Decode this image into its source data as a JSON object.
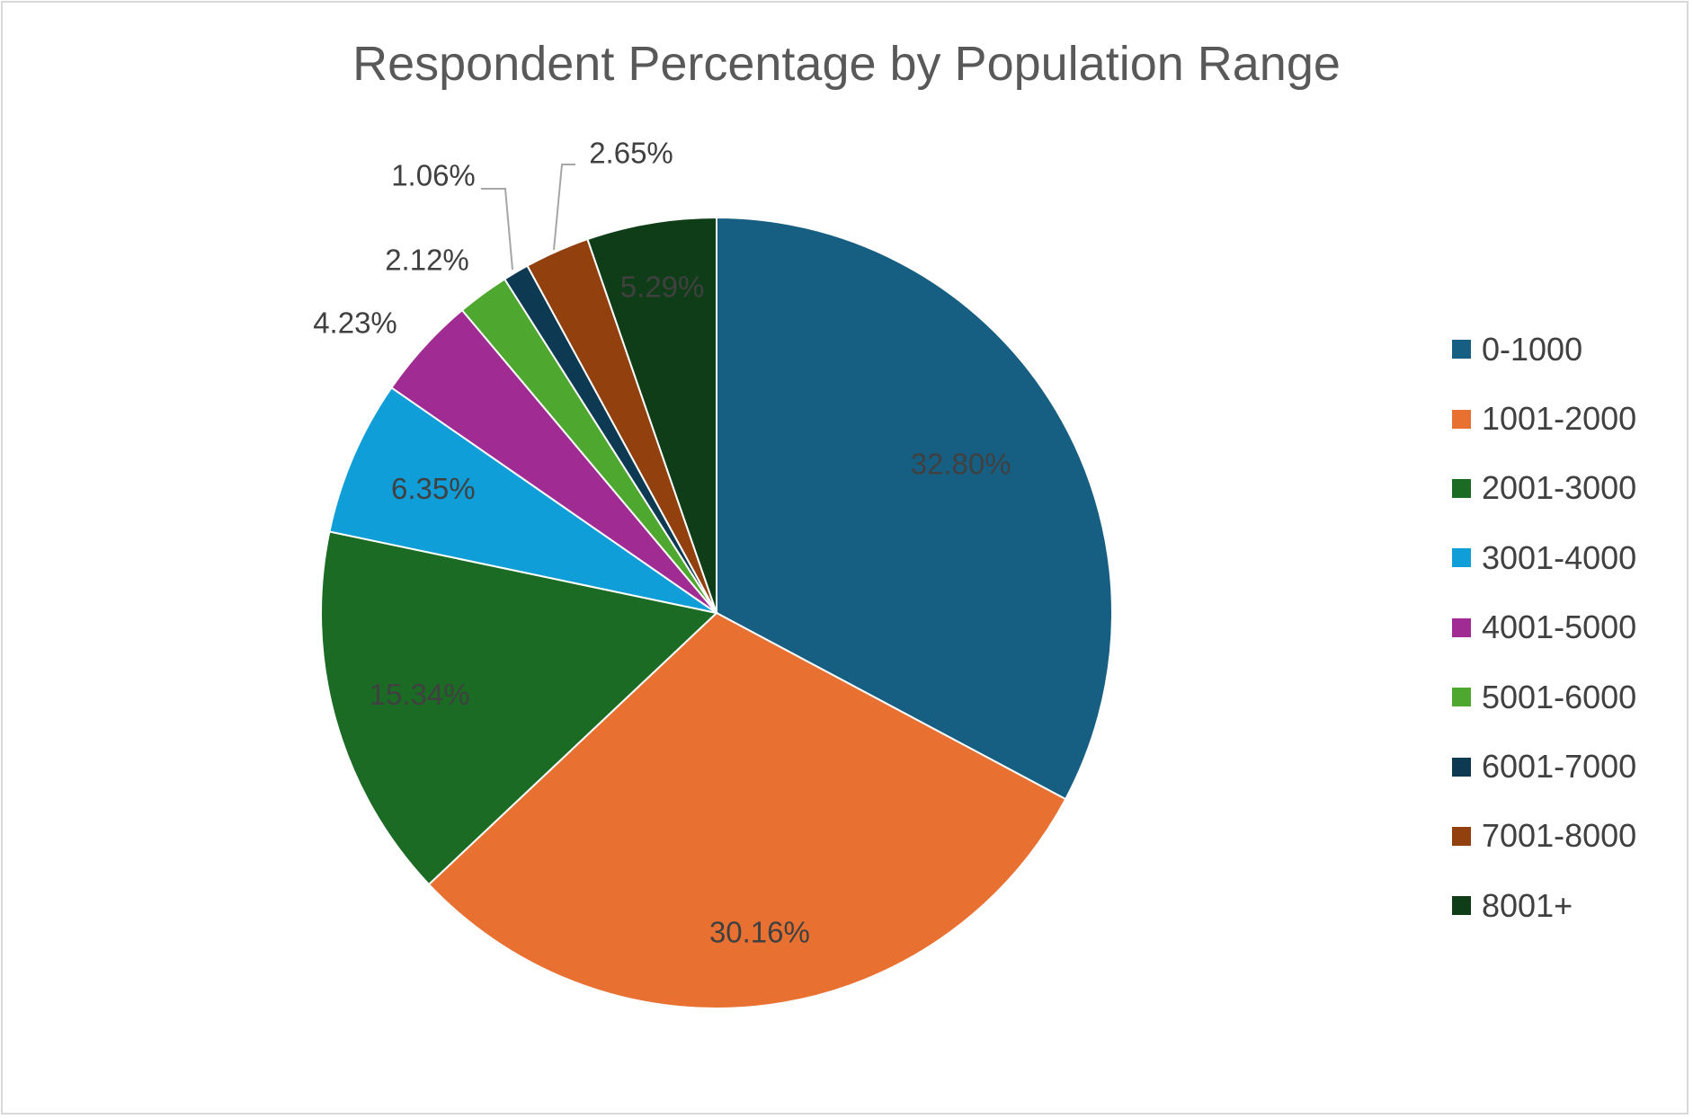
{
  "chart_data": {
    "type": "pie",
    "title": "Respondent Percentage by Population Range",
    "categories": [
      "0-1000",
      "1001-2000",
      "2001-3000",
      "3001-4000",
      "4001-5000",
      "5001-6000",
      "6001-7000",
      "7001-8000",
      "8001+"
    ],
    "values": [
      32.8,
      30.16,
      15.34,
      6.35,
      4.23,
      2.12,
      1.06,
      2.65,
      5.29
    ],
    "labels": [
      "32.80%",
      "30.16%",
      "15.34%",
      "6.35%",
      "4.23%",
      "2.12%",
      "1.06%",
      "2.65%",
      "5.29%"
    ],
    "colors": [
      "#175f82",
      "#e87132",
      "#1b6b25",
      "#109ed8",
      "#a02b93",
      "#4ea72e",
      "#0d3a52",
      "#93400f",
      "#0f3d17"
    ],
    "legend_position": "right"
  }
}
